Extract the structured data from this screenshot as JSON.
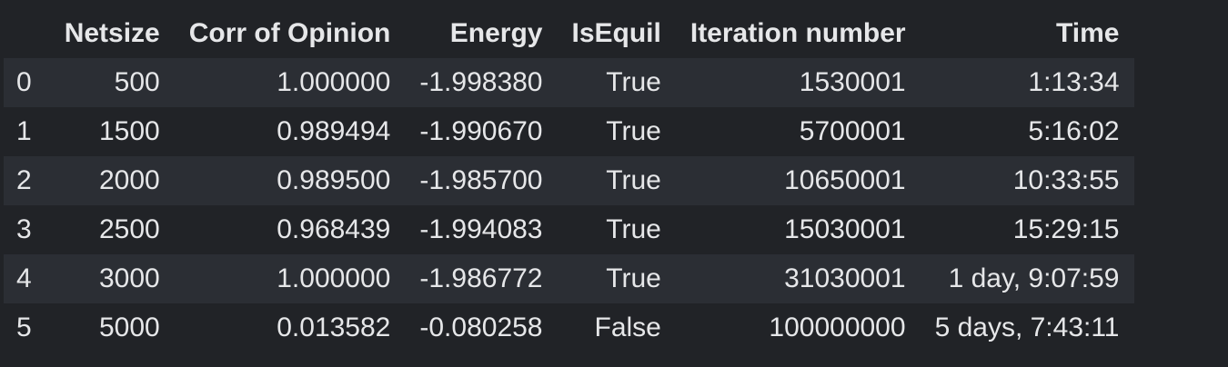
{
  "table": {
    "columns": [
      "",
      "Netsize",
      "Corr of Opinion",
      "Energy",
      "IsEquil",
      "Iteration number",
      "Time"
    ],
    "rows": [
      [
        "0",
        "500",
        "1.000000",
        "-1.998380",
        "True",
        "1530001",
        "1:13:34"
      ],
      [
        "1",
        "1500",
        "0.989494",
        "-1.990670",
        "True",
        "5700001",
        "5:16:02"
      ],
      [
        "2",
        "2000",
        "0.989500",
        "-1.985700",
        "True",
        "10650001",
        "10:33:55"
      ],
      [
        "3",
        "2500",
        "0.968439",
        "-1.994083",
        "True",
        "15030001",
        "15:29:15"
      ],
      [
        "4",
        "3000",
        "1.000000",
        "-1.986772",
        "True",
        "31030001",
        "1 day, 9:07:59"
      ],
      [
        "5",
        "5000",
        "0.013582",
        "-0.080258",
        "False",
        "100000000",
        "5 days, 7:43:11"
      ]
    ]
  },
  "colors": {
    "background": "#212327",
    "row_stripe": "#2b2e34",
    "text": "#e6e7e9"
  }
}
